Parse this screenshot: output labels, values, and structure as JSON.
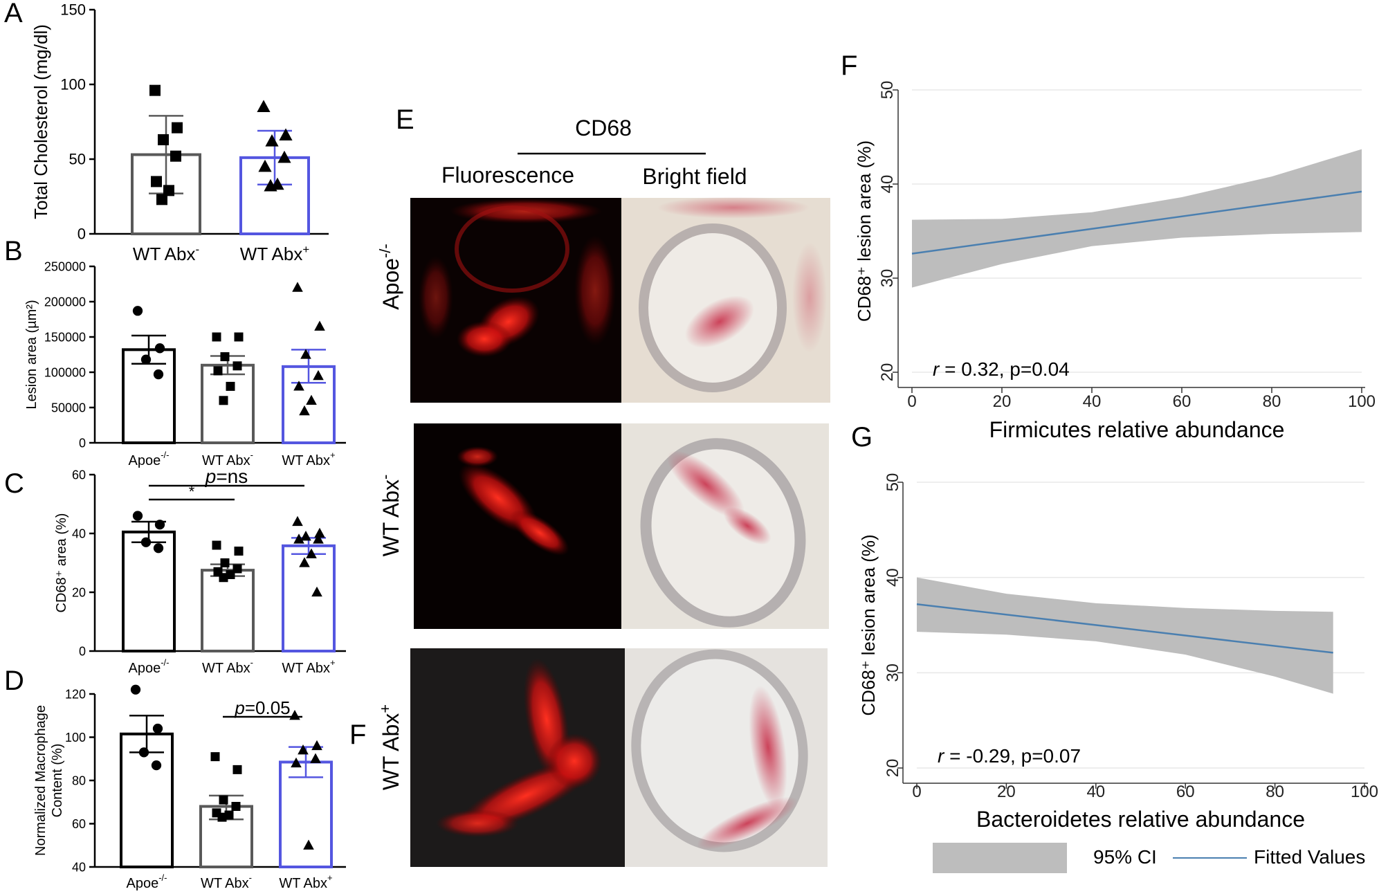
{
  "figure": {
    "letters": {
      "A": "A",
      "B": "B",
      "C": "C",
      "D": "D",
      "E": "E",
      "F_left": "F",
      "F": "F",
      "G": "G"
    },
    "microscopy": {
      "header": "CD68",
      "col_left": "Fluorescence",
      "col_right": "Bright field",
      "row_1": "Apoe-/-",
      "row_2": "WT Abx-",
      "row_3": "WT Abx+"
    },
    "legend": {
      "ci_label": "95% CI",
      "fit_label": "Fitted Values",
      "ci_color": "#bdbdbd",
      "fit_color": "#4a7fb0"
    }
  },
  "chart_data": [
    {
      "id": "A",
      "type": "bar",
      "ylabel": "Total Cholesterol (mg/dl)",
      "ylim": [
        0,
        150
      ],
      "yticks": [
        "0",
        "50",
        "100",
        "150"
      ],
      "categories": [
        "WT Abx-",
        "WT Abx+"
      ],
      "values": [
        53,
        51
      ],
      "error_low": [
        27,
        33
      ],
      "error_high": [
        79,
        69
      ],
      "colors": [
        "#595959",
        "#5456e0"
      ],
      "points": [
        [
          96,
          71,
          63,
          52,
          35,
          29,
          23
        ],
        [
          85,
          66,
          62,
          51,
          45,
          33,
          32
        ]
      ],
      "markers": [
        "square",
        "triangle"
      ]
    },
    {
      "id": "B",
      "type": "bar",
      "ylabel": "Lesion area (µm²)",
      "ylim": [
        0,
        250000
      ],
      "yticks": [
        "0",
        "50000",
        "100000",
        "150000",
        "200000",
        "250000"
      ],
      "categories": [
        "Apoe-/-",
        "WT Abx-",
        "WT Abx+"
      ],
      "values": [
        132000,
        110000,
        108000
      ],
      "error_low": [
        112000,
        97000,
        85000
      ],
      "error_high": [
        152000,
        123000,
        132000
      ],
      "colors": [
        "#000000",
        "#595959",
        "#5456e0"
      ],
      "points": [
        [
          187000,
          134000,
          118000,
          97000
        ],
        [
          150000,
          150000,
          122000,
          109000,
          102000,
          80000,
          60000
        ],
        [
          220000,
          165000,
          125000,
          95000,
          80000,
          60000,
          45000
        ]
      ],
      "markers": [
        "circle",
        "square",
        "triangle"
      ]
    },
    {
      "id": "C",
      "type": "bar",
      "ylabel": "CD68⁺ area (%)",
      "ylim": [
        0,
        60
      ],
      "yticks": [
        "0",
        "20",
        "40",
        "60"
      ],
      "categories": [
        "Apoe-/-",
        "WT Abx-",
        "WT Abx+"
      ],
      "values": [
        40.5,
        27.5,
        35.8
      ],
      "error_low": [
        37,
        25.5,
        33
      ],
      "error_high": [
        44,
        29.5,
        38.5
      ],
      "colors": [
        "#000000",
        "#595959",
        "#5456e0"
      ],
      "points": [
        [
          46,
          43,
          37,
          35
        ],
        [
          36,
          34,
          30,
          28,
          27,
          26,
          25
        ],
        [
          44,
          40,
          39,
          38,
          38,
          33,
          30,
          20
        ]
      ],
      "markers": [
        "circle",
        "square",
        "triangle"
      ],
      "sig": [
        {
          "from": 0,
          "to": 1,
          "label": "*"
        },
        {
          "from": 0,
          "to": 2,
          "label": "p=ns"
        }
      ]
    },
    {
      "id": "D",
      "type": "bar",
      "ylabel": "Normalized Macrophage Content (%)",
      "ylim": [
        40,
        120
      ],
      "yticks": [
        "40",
        "60",
        "80",
        "100",
        "120"
      ],
      "categories": [
        "Apoe-/-",
        "WT Abx-",
        "WT Abx+"
      ],
      "values": [
        101.5,
        68,
        88.5
      ],
      "error_low": [
        93,
        62,
        81.5
      ],
      "error_high": [
        110,
        73,
        95.5
      ],
      "colors": [
        "#000000",
        "#595959",
        "#5456e0"
      ],
      "points": [
        [
          122,
          104,
          93,
          87
        ],
        [
          91,
          85,
          71,
          68,
          65,
          64,
          63
        ],
        [
          110,
          96,
          94,
          90,
          88,
          50
        ]
      ],
      "markers": [
        "circle",
        "square",
        "triangle"
      ],
      "sig": [
        {
          "from": 1,
          "to": 2,
          "label": "p=0.05"
        }
      ]
    },
    {
      "id": "F",
      "type": "line",
      "xlabel": "Firmicutes relative abundance",
      "ylabel": "CD68⁺ lesion area (%)",
      "xlim": [
        0,
        100
      ],
      "ylim": [
        20,
        50
      ],
      "xticks": [
        "0",
        "20",
        "40",
        "60",
        "80",
        "100"
      ],
      "yticks": [
        "20",
        "30",
        "40",
        "50"
      ],
      "fit": {
        "x": [
          0,
          100
        ],
        "y": [
          32.6,
          39.2
        ]
      },
      "ci_upper": {
        "x": [
          0,
          20,
          40,
          60,
          80,
          100
        ],
        "y": [
          36.2,
          36.3,
          37.0,
          38.6,
          40.8,
          43.7
        ]
      },
      "ci_lower": {
        "x": [
          0,
          20,
          40,
          60,
          80,
          100
        ],
        "y": [
          29.0,
          31.5,
          33.4,
          34.3,
          34.7,
          34.9
        ]
      },
      "annotation": "r = 0.32, p=0.04"
    },
    {
      "id": "G",
      "type": "line",
      "xlabel": "Bacteroidetes relative abundance",
      "ylabel": "CD68⁺ lesion area (%)",
      "xlim": [
        0,
        100
      ],
      "ylim": [
        20,
        50
      ],
      "xticks": [
        "0",
        "20",
        "40",
        "60",
        "80",
        "100"
      ],
      "yticks": [
        "20",
        "30",
        "40",
        "50"
      ],
      "fit": {
        "x": [
          0,
          93
        ],
        "y": [
          37.2,
          32.1
        ]
      },
      "ci_upper": {
        "x": [
          0,
          20,
          40,
          60,
          80,
          93
        ],
        "y": [
          40.0,
          38.3,
          37.3,
          36.8,
          36.5,
          36.4
        ]
      },
      "ci_lower": {
        "x": [
          0,
          20,
          40,
          60,
          80,
          93
        ],
        "y": [
          34.3,
          34.0,
          33.3,
          31.9,
          29.6,
          27.8
        ]
      },
      "annotation": "r = -0.29, p=0.07"
    }
  ]
}
